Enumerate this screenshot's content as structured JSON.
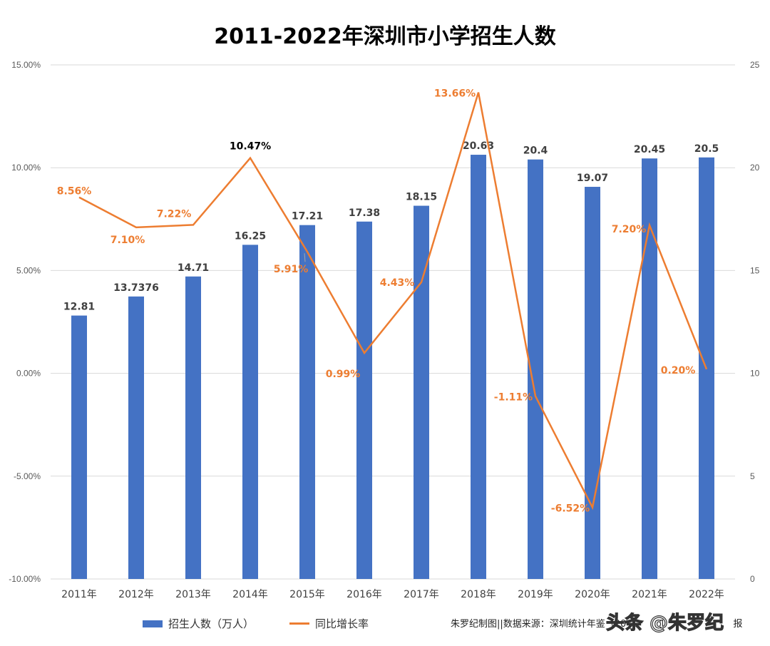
{
  "chart_data": {
    "type": "bar+line",
    "title": "2011-2022年深圳市小学招生人数",
    "categories": [
      "2011年",
      "2012年",
      "2013年",
      "2014年",
      "2015年",
      "2016年",
      "2017年",
      "2018年",
      "2019年",
      "2020年",
      "2021年",
      "2022年"
    ],
    "series": [
      {
        "name": "招生人数（万人）",
        "type": "bar",
        "axis": "right",
        "color": "#4472c4",
        "values": [
          12.81,
          13.7376,
          14.71,
          16.25,
          17.21,
          17.38,
          18.15,
          20.63,
          20.4,
          19.07,
          20.45,
          20.5
        ],
        "labels": [
          "12.81",
          "13.7376",
          "14.71",
          "16.25",
          "17.21",
          "17.38",
          "18.15",
          "20.63",
          "20.4",
          "19.07",
          "20.45",
          "20.5"
        ]
      },
      {
        "name": "同比增长率",
        "type": "line",
        "axis": "left",
        "color": "#ed7d31",
        "values": [
          8.56,
          7.1,
          7.22,
          10.47,
          5.91,
          0.99,
          4.43,
          13.66,
          -1.11,
          -6.52,
          7.2,
          0.2
        ],
        "labels": [
          "8.56%",
          "7.10%",
          "7.22%",
          "10.47%",
          "5.91%",
          "0.99%",
          "4.43%",
          "13.66%",
          "-1.11%",
          "-6.52%",
          "7.20%",
          "0.20%"
        ]
      }
    ],
    "left_axis": {
      "range": [
        -10,
        15
      ],
      "ticks": [
        "15.00%",
        "10.00%",
        "5.00%",
        "0.00%",
        "-5.00%",
        "-10.00%"
      ],
      "tick_values": [
        15,
        10,
        5,
        0,
        -5,
        -10
      ]
    },
    "right_axis": {
      "range": [
        0,
        25
      ],
      "ticks": [
        "25",
        "20",
        "15",
        "10",
        "5",
        "0"
      ],
      "tick_values": [
        25,
        20,
        15,
        10,
        5,
        0
      ]
    },
    "grid": true,
    "legend": "bottom-left"
  },
  "footer": {
    "source": "朱罗纪制图||数据来源：深圳统计年鉴（20",
    "source_end": "报",
    "watermark": "头条 @朱罗纪"
  }
}
